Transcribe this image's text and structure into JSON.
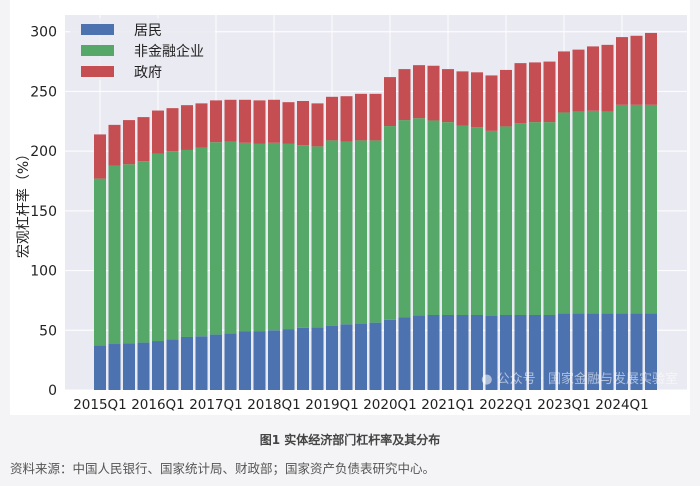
{
  "chart_data": {
    "type": "bar",
    "stacked": true,
    "title": "",
    "xlabel": "",
    "ylabel": "宏观杠杆率（%）",
    "ylim": [
      0,
      314
    ],
    "yticks": [
      0,
      50,
      100,
      150,
      200,
      250,
      300
    ],
    "xtick_labels": [
      "2015Q1",
      "2016Q1",
      "2017Q1",
      "2018Q1",
      "2019Q1",
      "2020Q1",
      "2021Q1",
      "2022Q1",
      "2023Q1",
      "2024Q1"
    ],
    "grid": true,
    "legend_position": "top-left",
    "categories": [
      "2015Q1",
      "2015Q2",
      "2015Q3",
      "2015Q4",
      "2016Q1",
      "2016Q2",
      "2016Q3",
      "2016Q4",
      "2017Q1",
      "2017Q2",
      "2017Q3",
      "2017Q4",
      "2018Q1",
      "2018Q2",
      "2018Q3",
      "2018Q4",
      "2019Q1",
      "2019Q2",
      "2019Q3",
      "2019Q4",
      "2020Q1",
      "2020Q2",
      "2020Q3",
      "2020Q4",
      "2021Q1",
      "2021Q2",
      "2021Q3",
      "2021Q4",
      "2022Q1",
      "2022Q2",
      "2022Q3",
      "2022Q4",
      "2023Q1",
      "2023Q2",
      "2023Q3",
      "2023Q4",
      "2024Q1",
      "2024Q2",
      "2024Q3"
    ],
    "series": [
      {
        "name": "居民",
        "color": "#4c72b0",
        "values": [
          37.2,
          38.5,
          39.0,
          39.7,
          41.0,
          42.5,
          44.4,
          45.0,
          46.4,
          47.5,
          49.0,
          49.0,
          50.0,
          51.0,
          52.0,
          52.5,
          53.6,
          55.0,
          55.6,
          56.4,
          58.7,
          61.0,
          62.6,
          62.8,
          62.8,
          62.8,
          62.8,
          62.3,
          62.8,
          62.8,
          62.8,
          62.8,
          64.2,
          64.2,
          64.2,
          64.2,
          64.0,
          64.0,
          64.0
        ]
      },
      {
        "name": "非金融企业",
        "color": "#55a868",
        "values": [
          139.8,
          149.2,
          150.0,
          151.9,
          157.0,
          157.5,
          156.6,
          158.0,
          161.1,
          160.5,
          158.0,
          157.4,
          157.0,
          155.4,
          153.0,
          151.5,
          155.4,
          153.0,
          153.4,
          152.6,
          162.3,
          165.0,
          165.0,
          162.9,
          161.5,
          158.7,
          157.2,
          154.7,
          157.9,
          160.7,
          161.5,
          161.5,
          168.2,
          168.8,
          169.6,
          168.8,
          174.8,
          174.8,
          174.8
        ]
      },
      {
        "name": "政府",
        "color": "#c44e52",
        "values": [
          37.0,
          34.3,
          37.0,
          36.9,
          36.0,
          36.0,
          37.5,
          37.0,
          35.0,
          35.0,
          36.0,
          36.1,
          36.0,
          34.6,
          37.0,
          36.0,
          36.5,
          38.0,
          39.0,
          39.0,
          41.0,
          42.7,
          44.4,
          45.8,
          44.4,
          45.3,
          46.0,
          46.4,
          47.3,
          50.2,
          50.0,
          50.7,
          51.1,
          52.0,
          53.9,
          56.0,
          56.7,
          57.8,
          60.2
        ]
      }
    ]
  },
  "watermark": "公众号 · 国家金融与发展实验室",
  "caption": "图1  实体经济部门杠杆率及其分布",
  "source": "资料来源：中国人民银行、国家统计局、财政部；国家资产负债表研究中心。"
}
